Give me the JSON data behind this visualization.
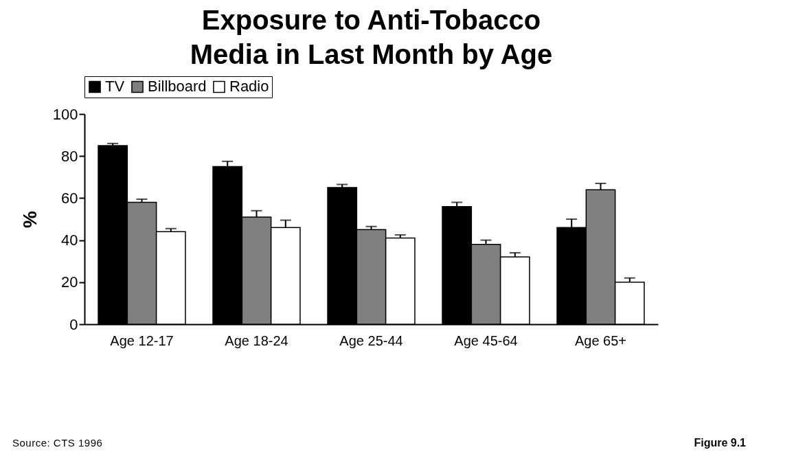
{
  "chart_data": {
    "type": "bar",
    "title": "Exposure to Anti-Tobacco Media in Last Month by Age",
    "ylabel": "%",
    "categories": [
      "Age 12-17",
      "Age 18-24",
      "Age 25-44",
      "Age 45-64",
      "Age 65+"
    ],
    "series": [
      {
        "name": "TV",
        "color": "#000000",
        "values": [
          85,
          75,
          65,
          56,
          46
        ],
        "errors": [
          [
            85,
            86
          ],
          [
            75,
            77.5
          ],
          [
            65,
            66.5
          ],
          [
            56,
            58
          ],
          [
            46,
            50
          ]
        ]
      },
      {
        "name": "Billboard",
        "color": "#808080",
        "values": [
          58,
          51,
          45,
          38,
          64
        ],
        "errors": [
          [
            58,
            59.5
          ],
          [
            51,
            54
          ],
          [
            45,
            46.5
          ],
          [
            38,
            40
          ],
          [
            64,
            67
          ]
        ]
      },
      {
        "name": "Radio",
        "color": "#ffffff",
        "values": [
          44,
          46,
          41,
          32,
          20
        ],
        "errors": [
          [
            44,
            45.5
          ],
          [
            46,
            49.5
          ],
          [
            41,
            42.5
          ],
          [
            32,
            34
          ],
          [
            20,
            22
          ]
        ]
      }
    ],
    "ylim": [
      0,
      100
    ],
    "yticks": [
      0,
      20,
      40,
      60,
      80,
      100
    ],
    "grid": false,
    "legend": "top",
    "annotations": [
      "Source: CTS 1996",
      "Figure 9.1"
    ]
  }
}
